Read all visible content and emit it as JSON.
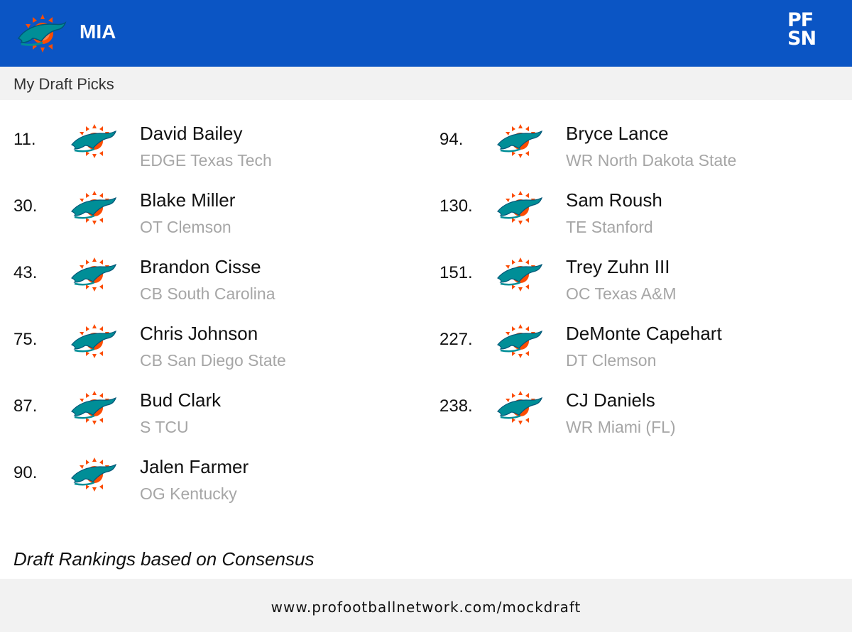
{
  "colors": {
    "header_bg": "#0b55c4",
    "team_aqua": "#008e97",
    "team_orange": "#fc4c02",
    "subtle_text": "#a6a6a6"
  },
  "header": {
    "team_logo_icon": "dolphins-logo-icon",
    "team_abbr": "MIA",
    "brand_logo_icon": "pfsn-logo-icon",
    "brand_text_top": "PF",
    "brand_text_bottom": "SN"
  },
  "subheader": {
    "title": "My Draft Picks"
  },
  "picks": [
    {
      "number": "11.",
      "name": "David Bailey",
      "info": "EDGE Texas Tech"
    },
    {
      "number": "30.",
      "name": "Blake Miller",
      "info": "OT Clemson"
    },
    {
      "number": "43.",
      "name": "Brandon Cisse",
      "info": "CB South Carolina"
    },
    {
      "number": "75.",
      "name": "Chris Johnson",
      "info": "CB San Diego State"
    },
    {
      "number": "87.",
      "name": "Bud Clark",
      "info": "S TCU"
    },
    {
      "number": "90.",
      "name": "Jalen Farmer",
      "info": "OG Kentucky"
    },
    {
      "number": "94.",
      "name": "Bryce Lance",
      "info": "WR North Dakota State"
    },
    {
      "number": "130.",
      "name": "Sam Roush",
      "info": "TE Stanford"
    },
    {
      "number": "151.",
      "name": "Trey Zuhn III",
      "info": "OC Texas A&M"
    },
    {
      "number": "227.",
      "name": "DeMonte Capehart",
      "info": "DT Clemson"
    },
    {
      "number": "238.",
      "name": "CJ Daniels",
      "info": "WR Miami (FL)"
    }
  ],
  "note": "Draft Rankings based on Consensus",
  "footer": {
    "url": "www.profootballnetwork.com/mockdraft"
  }
}
